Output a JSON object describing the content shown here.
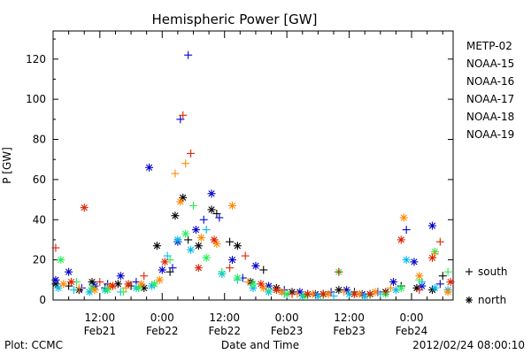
{
  "chart_data": {
    "type": "scatter",
    "title": "Hemispheric Power [GW]",
    "xlabel": "Date and Time",
    "ylabel": "P [GW]",
    "xlim": [
      "2012-02-21 03:00",
      "2012-02-24 08:00"
    ],
    "ylim": [
      0,
      134
    ],
    "yticks": [
      "0",
      "20",
      "40",
      "60",
      "80",
      "100",
      "120"
    ],
    "xticks": [
      {
        "time": "12:00",
        "date": "Feb21"
      },
      {
        "time": "0:00",
        "date": "Feb22"
      },
      {
        "time": "12:00",
        "date": "Feb22"
      },
      {
        "time": "0:00",
        "date": "Feb23"
      },
      {
        "time": "12:00",
        "date": "Feb23"
      },
      {
        "time": "0:00",
        "date": "Feb24"
      }
    ],
    "legend_position": "right",
    "marker_legend": {
      "south": "south",
      "north": "north"
    },
    "series": [
      {
        "name": "METP-02",
        "color": "#000000",
        "points": [
          [
            "2012-02-21 03:30",
            8,
            "n"
          ],
          [
            "2012-02-21 06:00",
            7,
            "s"
          ],
          [
            "2012-02-21 08:00",
            5,
            "n"
          ],
          [
            "2012-02-21 10:30",
            9,
            "n"
          ],
          [
            "2012-02-21 13:00",
            6,
            "s"
          ],
          [
            "2012-02-21 15:30",
            8,
            "n"
          ],
          [
            "2012-02-21 18:00",
            7,
            "s"
          ],
          [
            "2012-02-21 20:30",
            6,
            "n"
          ],
          [
            "2012-02-21 23:00",
            27,
            "n"
          ],
          [
            "2012-02-22 01:30",
            14,
            "s"
          ],
          [
            "2012-02-22 02:30",
            42,
            "n"
          ],
          [
            "2012-02-22 04:00",
            51,
            "n"
          ],
          [
            "2012-02-22 05:00",
            30,
            "s"
          ],
          [
            "2012-02-22 07:00",
            27,
            "n"
          ],
          [
            "2012-02-22 09:30",
            45,
            "n"
          ],
          [
            "2012-02-22 10:30",
            43,
            "s"
          ],
          [
            "2012-02-22 13:00",
            29,
            "s"
          ],
          [
            "2012-02-22 14:30",
            27,
            "n"
          ],
          [
            "2012-02-22 17:00",
            9,
            "n"
          ],
          [
            "2012-02-22 19:30",
            15,
            "s"
          ],
          [
            "2012-02-22 22:00",
            6,
            "n"
          ],
          [
            "2012-02-23 01:00",
            4,
            "n"
          ],
          [
            "2012-02-23 04:00",
            3,
            "s"
          ],
          [
            "2012-02-23 07:00",
            3,
            "n"
          ],
          [
            "2012-02-23 10:00",
            5,
            "n"
          ],
          [
            "2012-02-23 13:00",
            4,
            "s"
          ],
          [
            "2012-02-23 16:00",
            3,
            "n"
          ],
          [
            "2012-02-23 19:00",
            4,
            "n"
          ],
          [
            "2012-02-23 22:00",
            7,
            "s"
          ],
          [
            "2012-02-24 01:00",
            6,
            "n"
          ],
          [
            "2012-02-24 04:00",
            5,
            "n"
          ],
          [
            "2012-02-24 06:00",
            12,
            "s"
          ]
        ]
      },
      {
        "name": "NOAA-15",
        "color": "#0000cc",
        "points": [
          [
            "2012-02-21 03:30",
            10,
            "n"
          ],
          [
            "2012-02-21 06:00",
            14,
            "n"
          ],
          [
            "2012-02-21 08:30",
            6,
            "s"
          ],
          [
            "2012-02-21 11:00",
            7,
            "n"
          ],
          [
            "2012-02-21 13:30",
            8,
            "s"
          ],
          [
            "2012-02-21 16:00",
            12,
            "n"
          ],
          [
            "2012-02-21 19:00",
            9,
            "s"
          ],
          [
            "2012-02-21 21:30",
            66,
            "n"
          ],
          [
            "2012-02-22 00:00",
            15,
            "n"
          ],
          [
            "2012-02-22 02:00",
            16,
            "s"
          ],
          [
            "2012-02-22 03:00",
            29,
            "n"
          ],
          [
            "2012-02-22 03:30",
            90,
            "s"
          ],
          [
            "2012-02-22 05:00",
            122,
            "s"
          ],
          [
            "2012-02-22 06:30",
            35,
            "n"
          ],
          [
            "2012-02-22 08:00",
            40,
            "s"
          ],
          [
            "2012-02-22 09:30",
            53,
            "n"
          ],
          [
            "2012-02-22 11:00",
            41,
            "s"
          ],
          [
            "2012-02-22 13:30",
            20,
            "n"
          ],
          [
            "2012-02-22 15:30",
            11,
            "s"
          ],
          [
            "2012-02-22 18:00",
            17,
            "n"
          ],
          [
            "2012-02-22 20:30",
            7,
            "n"
          ],
          [
            "2012-02-22 23:30",
            5,
            "s"
          ],
          [
            "2012-02-23 02:30",
            4,
            "n"
          ],
          [
            "2012-02-23 05:30",
            3,
            "n"
          ],
          [
            "2012-02-23 08:30",
            4,
            "s"
          ],
          [
            "2012-02-23 11:30",
            5,
            "n"
          ],
          [
            "2012-02-23 14:30",
            3,
            "n"
          ],
          [
            "2012-02-23 17:30",
            4,
            "s"
          ],
          [
            "2012-02-23 20:30",
            9,
            "n"
          ],
          [
            "2012-02-23 23:00",
            35,
            "s"
          ],
          [
            "2012-02-24 00:30",
            19,
            "n"
          ],
          [
            "2012-02-24 02:00",
            7,
            "n"
          ],
          [
            "2012-02-24 04:00",
            37,
            "n"
          ],
          [
            "2012-02-24 05:30",
            8,
            "s"
          ]
        ]
      },
      {
        "name": "NOAA-16",
        "color": "#00bbee",
        "points": [
          [
            "2012-02-21 04:00",
            6,
            "n"
          ],
          [
            "2012-02-21 07:00",
            5,
            "s"
          ],
          [
            "2012-02-21 10:00",
            4,
            "n"
          ],
          [
            "2012-02-21 13:00",
            5,
            "n"
          ],
          [
            "2012-02-21 16:00",
            4,
            "s"
          ],
          [
            "2012-02-21 19:00",
            6,
            "n"
          ],
          [
            "2012-02-21 22:00",
            7,
            "n"
          ],
          [
            "2012-02-22 01:00",
            22,
            "s"
          ],
          [
            "2012-02-22 03:00",
            30,
            "n"
          ],
          [
            "2012-02-22 05:30",
            25,
            "n"
          ],
          [
            "2012-02-22 08:30",
            35,
            "s"
          ],
          [
            "2012-02-22 11:30",
            13,
            "n"
          ],
          [
            "2012-02-22 14:30",
            10,
            "s"
          ],
          [
            "2012-02-22 17:30",
            6,
            "n"
          ],
          [
            "2012-02-22 20:30",
            4,
            "n"
          ],
          [
            "2012-02-22 23:30",
            3,
            "s"
          ],
          [
            "2012-02-23 03:00",
            2,
            "n"
          ],
          [
            "2012-02-23 06:00",
            2,
            "n"
          ],
          [
            "2012-02-23 09:00",
            2,
            "s"
          ],
          [
            "2012-02-23 12:00",
            3,
            "n"
          ],
          [
            "2012-02-23 15:00",
            2,
            "n"
          ],
          [
            "2012-02-23 18:00",
            3,
            "s"
          ],
          [
            "2012-02-23 21:00",
            5,
            "n"
          ],
          [
            "2012-02-23 23:00",
            20,
            "n"
          ],
          [
            "2012-02-24 02:00",
            9,
            "s"
          ],
          [
            "2012-02-24 04:30",
            6,
            "n"
          ],
          [
            "2012-02-24 07:00",
            5,
            "n"
          ]
        ]
      },
      {
        "name": "NOAA-17",
        "color": "#22ee55",
        "points": [
          [
            "2012-02-21 04:30",
            20,
            "n"
          ],
          [
            "2012-02-21 07:30",
            9,
            "s"
          ],
          [
            "2012-02-21 10:30",
            6,
            "n"
          ],
          [
            "2012-02-21 13:30",
            5,
            "n"
          ],
          [
            "2012-02-21 16:30",
            4,
            "s"
          ],
          [
            "2012-02-21 19:30",
            6,
            "n"
          ],
          [
            "2012-02-21 22:30",
            8,
            "n"
          ],
          [
            "2012-02-22 01:30",
            20,
            "s"
          ],
          [
            "2012-02-22 04:30",
            33,
            "n"
          ],
          [
            "2012-02-22 06:00",
            47,
            "s"
          ],
          [
            "2012-02-22 08:30",
            21,
            "n"
          ],
          [
            "2012-02-22 11:30",
            14,
            "s"
          ],
          [
            "2012-02-22 14:30",
            11,
            "n"
          ],
          [
            "2012-02-22 17:30",
            8,
            "n"
          ],
          [
            "2012-02-22 20:30",
            5,
            "s"
          ],
          [
            "2012-02-23 00:00",
            3,
            "n"
          ],
          [
            "2012-02-23 03:30",
            2,
            "n"
          ],
          [
            "2012-02-23 07:00",
            2,
            "s"
          ],
          [
            "2012-02-23 10:00",
            14,
            "n"
          ],
          [
            "2012-02-23 13:00",
            3,
            "n"
          ],
          [
            "2012-02-23 16:00",
            2,
            "s"
          ],
          [
            "2012-02-23 19:00",
            3,
            "n"
          ],
          [
            "2012-02-23 22:00",
            6,
            "n"
          ],
          [
            "2012-02-24 01:30",
            10,
            "s"
          ],
          [
            "2012-02-24 04:30",
            24,
            "n"
          ],
          [
            "2012-02-24 07:00",
            14,
            "s"
          ]
        ]
      },
      {
        "name": "NOAA-18",
        "color": "#ff8800",
        "points": [
          [
            "2012-02-21 05:00",
            8,
            "n"
          ],
          [
            "2012-02-21 08:00",
            6,
            "s"
          ],
          [
            "2012-02-21 11:00",
            5,
            "n"
          ],
          [
            "2012-02-21 14:00",
            7,
            "n"
          ],
          [
            "2012-02-21 17:00",
            6,
            "s"
          ],
          [
            "2012-02-21 20:00",
            8,
            "n"
          ],
          [
            "2012-02-21 23:30",
            10,
            "n"
          ],
          [
            "2012-02-22 02:30",
            63,
            "s"
          ],
          [
            "2012-02-22 03:30",
            49,
            "n"
          ],
          [
            "2012-02-22 04:30",
            68,
            "s"
          ],
          [
            "2012-02-22 07:30",
            31,
            "n"
          ],
          [
            "2012-02-22 10:30",
            28,
            "n"
          ],
          [
            "2012-02-22 13:30",
            47,
            "n"
          ],
          [
            "2012-02-22 16:30",
            9,
            "s"
          ],
          [
            "2012-02-22 19:30",
            6,
            "n"
          ],
          [
            "2012-02-22 23:00",
            4,
            "n"
          ],
          [
            "2012-02-23 02:00",
            3,
            "s"
          ],
          [
            "2012-02-23 05:00",
            3,
            "n"
          ],
          [
            "2012-02-23 08:00",
            3,
            "n"
          ],
          [
            "2012-02-23 11:00",
            4,
            "s"
          ],
          [
            "2012-02-23 14:00",
            3,
            "n"
          ],
          [
            "2012-02-23 17:00",
            4,
            "n"
          ],
          [
            "2012-02-23 20:00",
            6,
            "s"
          ],
          [
            "2012-02-23 22:30",
            41,
            "n"
          ],
          [
            "2012-02-24 01:30",
            12,
            "n"
          ],
          [
            "2012-02-24 04:30",
            23,
            "s"
          ],
          [
            "2012-02-24 07:00",
            4,
            "n"
          ]
        ]
      },
      {
        "name": "NOAA-19",
        "color": "#dd2200",
        "points": [
          [
            "2012-02-21 03:30",
            26,
            "s"
          ],
          [
            "2012-02-21 06:30",
            9,
            "n"
          ],
          [
            "2012-02-21 09:00",
            46,
            "n"
          ],
          [
            "2012-02-21 12:00",
            9,
            "s"
          ],
          [
            "2012-02-21 14:30",
            7,
            "n"
          ],
          [
            "2012-02-21 17:30",
            8,
            "n"
          ],
          [
            "2012-02-21 20:30",
            12,
            "s"
          ],
          [
            "2012-02-22 00:30",
            19,
            "n"
          ],
          [
            "2012-02-22 04:00",
            92,
            "s"
          ],
          [
            "2012-02-22 05:30",
            73,
            "s"
          ],
          [
            "2012-02-22 07:00",
            16,
            "n"
          ],
          [
            "2012-02-22 10:00",
            30,
            "n"
          ],
          [
            "2012-02-22 13:00",
            16,
            "s"
          ],
          [
            "2012-02-22 16:00",
            22,
            "s"
          ],
          [
            "2012-02-22 19:00",
            8,
            "n"
          ],
          [
            "2012-02-22 22:00",
            5,
            "n"
          ],
          [
            "2012-02-23 01:00",
            3,
            "s"
          ],
          [
            "2012-02-23 04:00",
            3,
            "n"
          ],
          [
            "2012-02-23 07:00",
            3,
            "n"
          ],
          [
            "2012-02-23 10:00",
            14,
            "s"
          ],
          [
            "2012-02-23 13:00",
            3,
            "n"
          ],
          [
            "2012-02-23 16:00",
            3,
            "n"
          ],
          [
            "2012-02-23 19:00",
            4,
            "s"
          ],
          [
            "2012-02-23 22:00",
            30,
            "n"
          ],
          [
            "2012-02-24 01:30",
            5,
            "s"
          ],
          [
            "2012-02-24 04:00",
            21,
            "n"
          ],
          [
            "2012-02-24 05:30",
            29,
            "s"
          ],
          [
            "2012-02-24 07:30",
            9,
            "n"
          ]
        ]
      }
    ]
  },
  "footer": {
    "left": "Plot: CCMC",
    "right": "2012/02/24 08:00:10"
  }
}
